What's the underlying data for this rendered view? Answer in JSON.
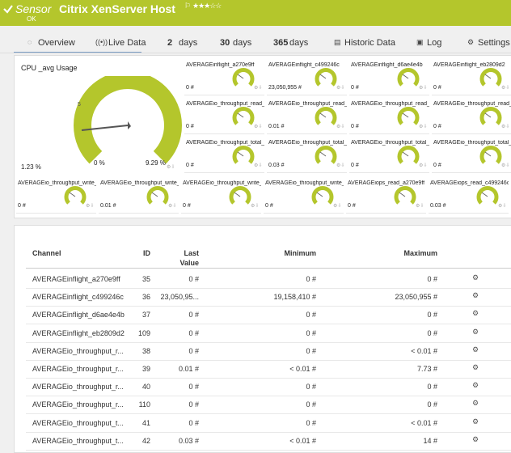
{
  "header": {
    "kind": "Sensor",
    "name": "Citrix XenServer Host",
    "status": "OK"
  },
  "tabs": [
    "Overview",
    "Live Data",
    "2",
    "days",
    "30",
    "days",
    "365",
    "days",
    "Historic Data",
    "Log",
    "Settings"
  ],
  "main_gauge": {
    "title": "CPU _avg Usage",
    "scale_label": "5",
    "min": "0 %",
    "max": "9.29 %",
    "value": "1.23 %"
  },
  "gauges": [
    {
      "label": "AVERAGEinflight_a270e9ff",
      "value": "0 #"
    },
    {
      "label": "AVERAGEinflight_c499246c",
      "value": "23,050,955 #"
    },
    {
      "label": "AVERAGEinflight_d6ae4e4b",
      "value": "0 #"
    },
    {
      "label": "AVERAGEinflight_eb2809d2",
      "value": "0 #"
    },
    {
      "label": "AVERAGEio_throughput_read_",
      "value": "0 #"
    },
    {
      "label": "AVERAGEio_throughput_read_",
      "value": "0.01 #"
    },
    {
      "label": "AVERAGEio_throughput_read_",
      "value": "0 #"
    },
    {
      "label": "AVERAGEio_throughput_read_",
      "value": "0 #"
    },
    {
      "label": "AVERAGEio_throughput_total_",
      "value": "0 #"
    },
    {
      "label": "AVERAGEio_throughput_total_",
      "value": "0.03 #"
    },
    {
      "label": "AVERAGEio_throughput_total_",
      "value": "0 #"
    },
    {
      "label": "AVERAGEio_throughput_total_",
      "value": "0 #"
    },
    {
      "label": "AVERAGEio_throughput_write_",
      "value": "0 #"
    },
    {
      "label": "AVERAGEio_throughput_write_",
      "value": "0.01 #"
    },
    {
      "label": "AVERAGEio_throughput_write_",
      "value": "0 #"
    },
    {
      "label": "AVERAGEio_throughput_write_",
      "value": "0 #"
    },
    {
      "label": "AVERAGEiops_read_a270e9ff",
      "value": "0 #"
    },
    {
      "label": "AVERAGEiops_read_c499246c",
      "value": "0.03 #"
    }
  ],
  "table": {
    "columns": [
      "Channel",
      "ID",
      "Last Value",
      "Minimum",
      "Maximum"
    ],
    "rows": [
      [
        "AVERAGEinflight_a270e9ff",
        35,
        "0 #",
        "0 #",
        "0 #"
      ],
      [
        "AVERAGEinflight_c499246c",
        36,
        "23,050,95...",
        "19,158,410 #",
        "23,050,955 #"
      ],
      [
        "AVERAGEinflight_d6ae4e4b",
        37,
        "0 #",
        "0 #",
        "0 #"
      ],
      [
        "AVERAGEinflight_eb2809d2",
        109,
        "0 #",
        "0 #",
        "0 #"
      ],
      [
        "AVERAGEio_throughput_r...",
        38,
        "0 #",
        "0 #",
        "< 0.01 #"
      ],
      [
        "AVERAGEio_throughput_r...",
        39,
        "0.01 #",
        "< 0.01 #",
        "7.73 #"
      ],
      [
        "AVERAGEio_throughput_r...",
        40,
        "0 #",
        "0 #",
        "0 #"
      ],
      [
        "AVERAGEio_throughput_r...",
        110,
        "0 #",
        "0 #",
        "0 #"
      ],
      [
        "AVERAGEio_throughput_t...",
        41,
        "0 #",
        "0 #",
        "< 0.01 #"
      ],
      [
        "AVERAGEio_throughput_t...",
        42,
        "0.03 #",
        "< 0.01 #",
        "14 #"
      ]
    ]
  }
}
